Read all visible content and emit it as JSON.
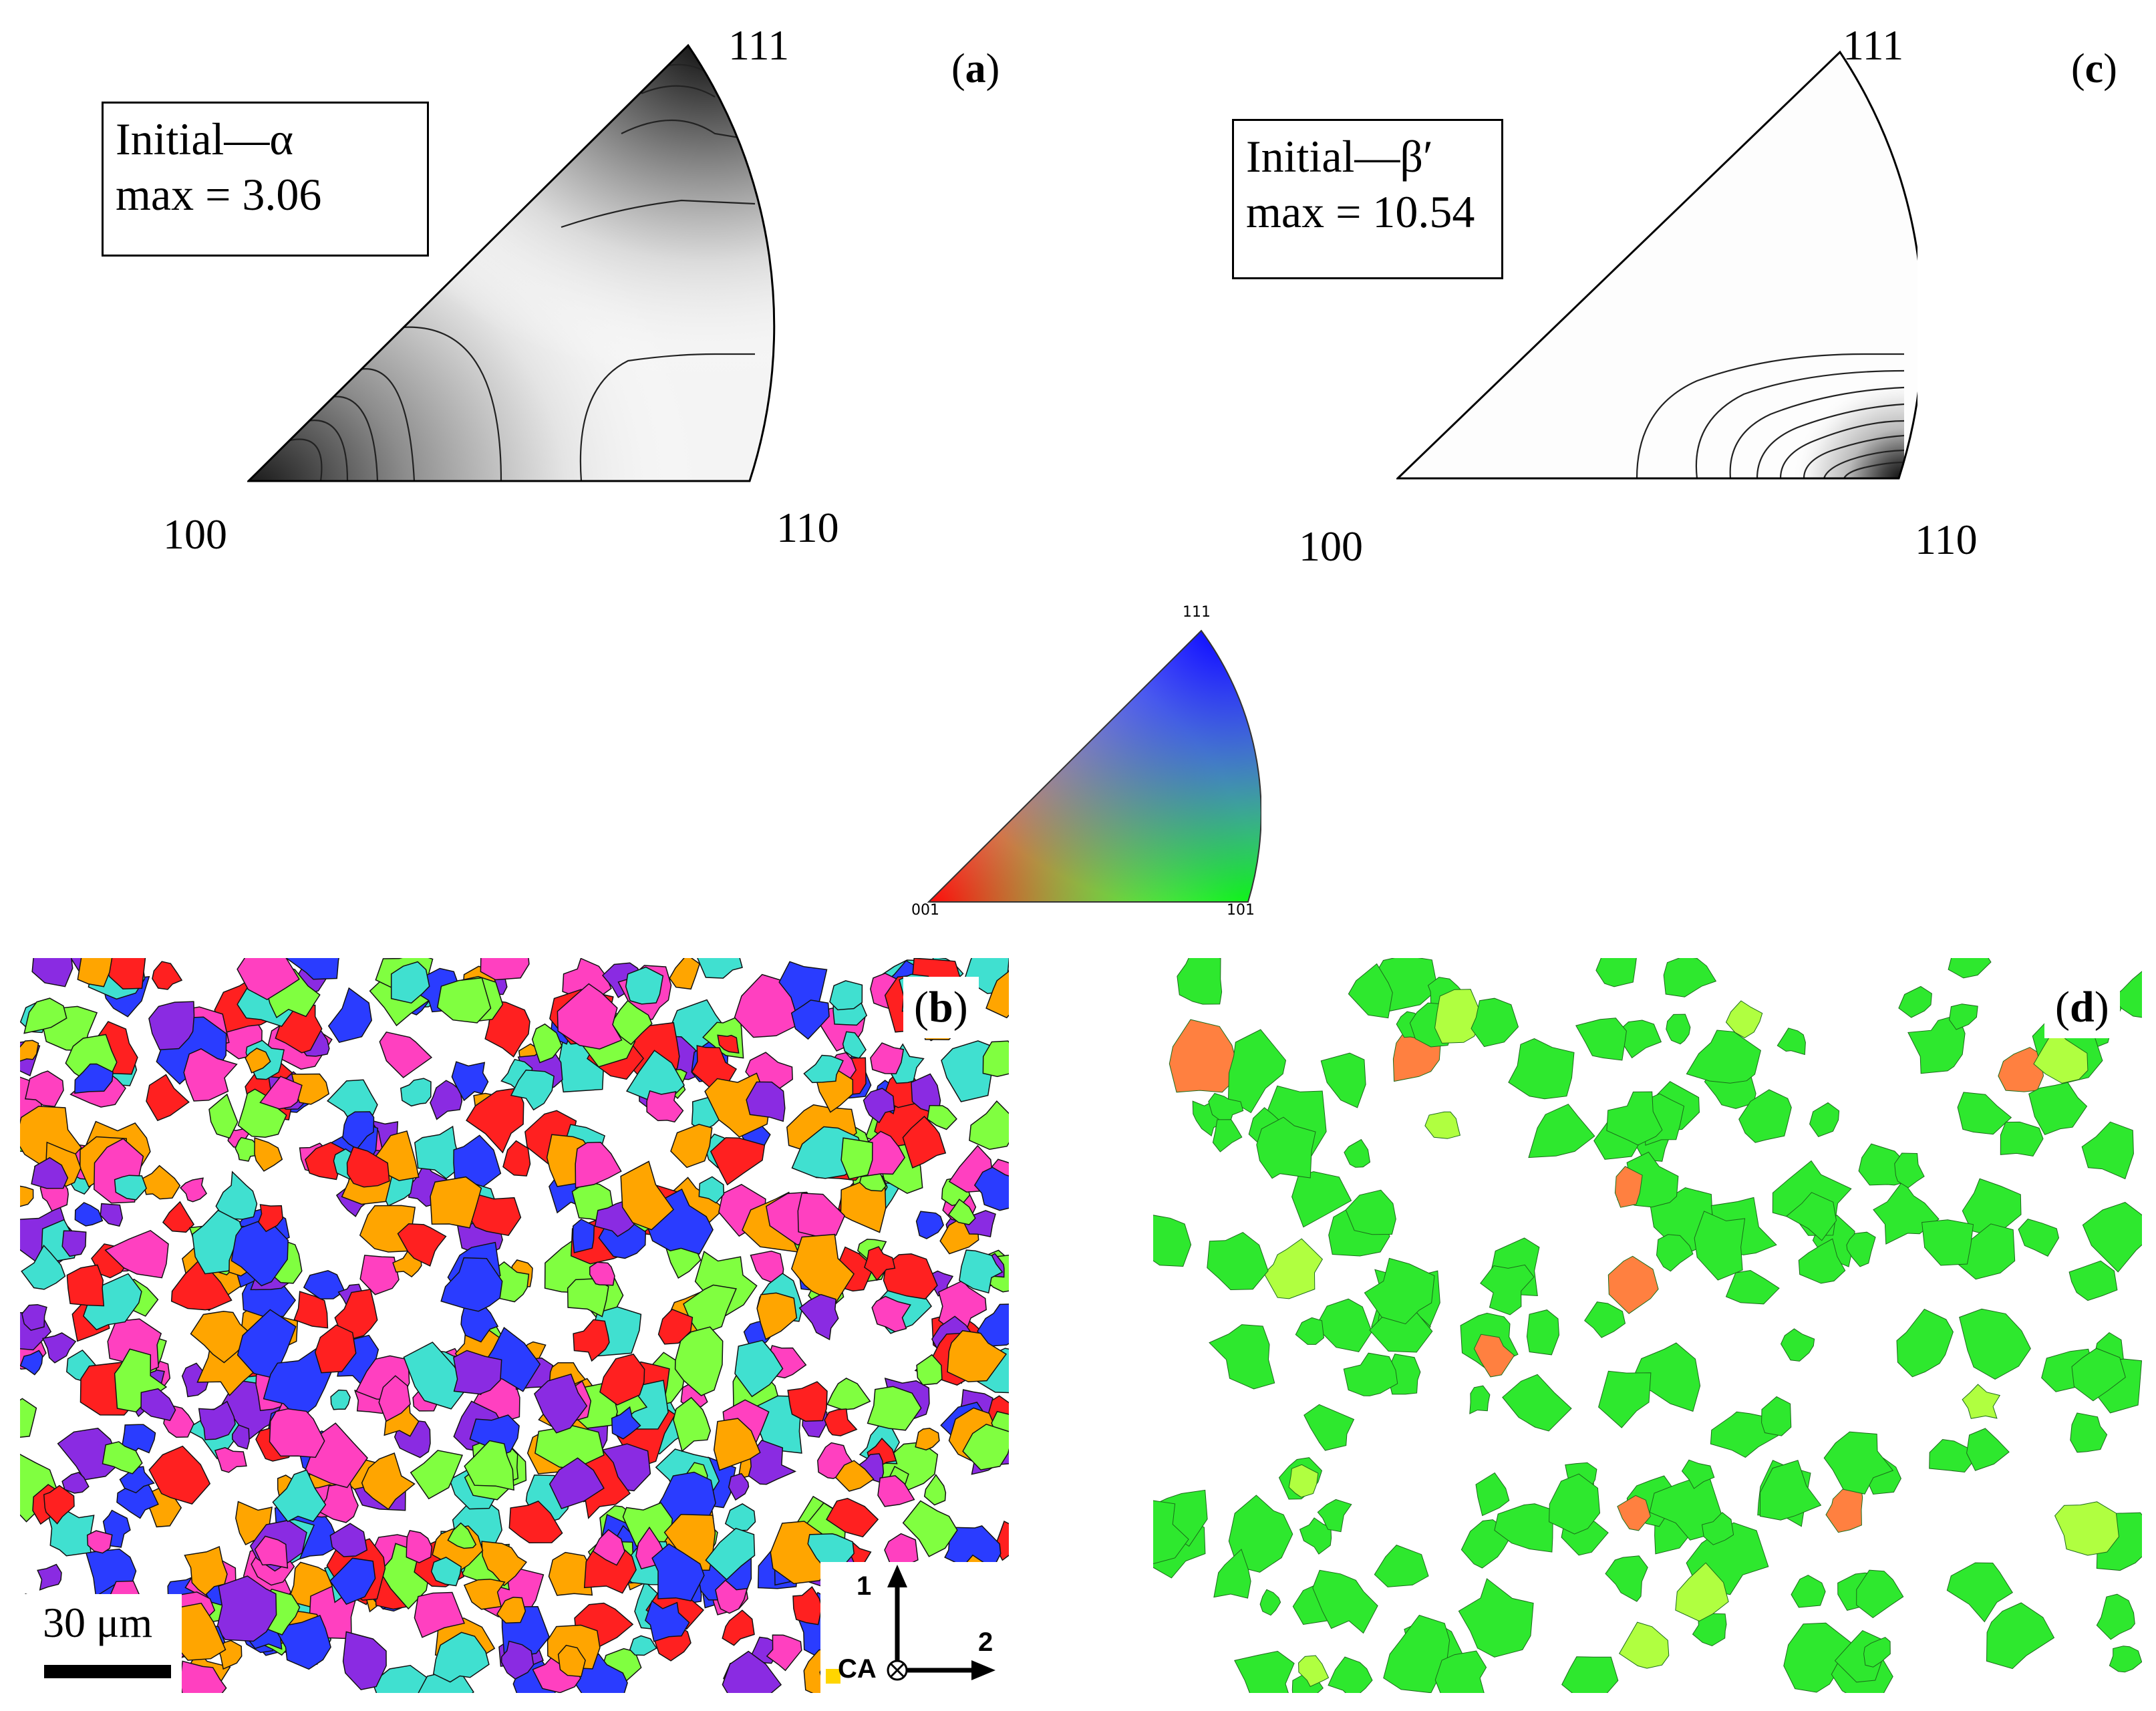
{
  "panels": {
    "a": {
      "label_open": "(",
      "label_letter": "a",
      "label_close": ")",
      "box_line1": "Initial—α",
      "box_line2": "max = 3.06",
      "corner_top": "111",
      "corner_left": "100",
      "corner_right": "110",
      "shading": "dark at 100 and 111 corners, light near 110"
    },
    "c": {
      "label_open": "(",
      "label_letter": "c",
      "label_close": ")",
      "box_line1": "Initial—β′",
      "box_line2": "max = 10.54",
      "corner_top": "111",
      "corner_left": "100",
      "corner_right": "110",
      "shading": "dark concentrated near 110 corner"
    },
    "key": {
      "corner_top": "111",
      "corner_left": "001",
      "corner_right": "101",
      "colors": {
        "001": "#ff0000",
        "101": "#00ff00",
        "111": "#0000ff"
      }
    },
    "b": {
      "label_open": "(",
      "label_letter": "b",
      "label_close": ")",
      "scale_bar": "30 μm",
      "axis_1": "1",
      "axis_2": "2",
      "axis_ca": "CA",
      "dominant_colors": [
        "#ff2020",
        "#2a3cff",
        "#8a2be2",
        "#ff40c0",
        "#40e0d0",
        "#80ff40",
        "#ffa500"
      ]
    },
    "d": {
      "label_open": "(",
      "label_letter": "d",
      "label_close": ")",
      "dominant_colors": [
        "#2ee82e",
        "#b0ff40",
        "#ff8040"
      ]
    }
  }
}
